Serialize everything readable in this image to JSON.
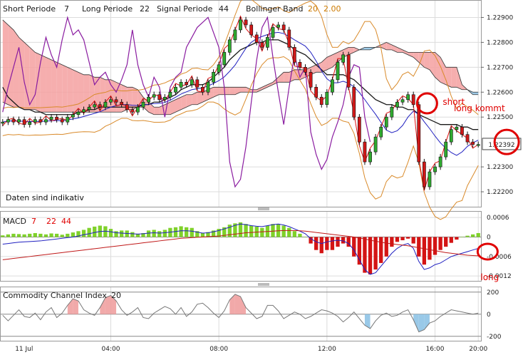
{
  "chart_data": [
    {
      "type": "candlestick",
      "panel": "price",
      "indicator_labels": {
        "short_label": "Short Periode",
        "short_value": "7",
        "long_label": "Long Periode",
        "long_value": "22",
        "signal_label": "Signal Periode",
        "signal_value": "44",
        "boll_label": "Bollinger Band",
        "boll_value1": "20",
        "boll_value2": "2.00"
      },
      "note": "Daten sind indikativ",
      "y_ticks": [
        "1.22900",
        "1.22800",
        "1.22700",
        "1.22600",
        "1.22500",
        "1.22300",
        "1.22200"
      ],
      "y_tick_values": [
        1.229,
        1.228,
        1.227,
        1.226,
        1.225,
        1.223,
        1.222
      ],
      "ylim": [
        1.2214,
        1.2297
      ],
      "current_price": "1.22392",
      "current_value": 1.22392,
      "annotations": {
        "short": "short",
        "long_kommt": "long kommt"
      },
      "closes": [
        1.2248,
        1.2249,
        1.2248,
        1.2249,
        1.2247,
        1.2248,
        1.2249,
        1.2248,
        1.2249,
        1.225,
        1.2249,
        1.2248,
        1.225,
        1.2251,
        1.2252,
        1.2253,
        1.2254,
        1.2255,
        1.2254,
        1.2256,
        1.2257,
        1.2256,
        1.2255,
        1.2253,
        1.2252,
        1.2254,
        1.2256,
        1.2258,
        1.2259,
        1.2257,
        1.2258,
        1.226,
        1.2262,
        1.2264,
        1.2263,
        1.2265,
        1.2262,
        1.226,
        1.2264,
        1.2268,
        1.2271,
        1.2276,
        1.2281,
        1.2285,
        1.2289,
        1.2287,
        1.2283,
        1.228,
        1.2278,
        1.2282,
        1.2286,
        1.2287,
        1.2285,
        1.2278,
        1.2272,
        1.227,
        1.2268,
        1.2262,
        1.2258,
        1.2255,
        1.226,
        1.2265,
        1.2272,
        1.2275,
        1.2262,
        1.225,
        1.224,
        1.2232,
        1.2236,
        1.2242,
        1.2246,
        1.225,
        1.2254,
        1.2256,
        1.2257,
        1.2259,
        1.2255,
        1.2232,
        1.2222,
        1.2228,
        1.223,
        1.2234,
        1.224,
        1.2245,
        1.2246,
        1.2243,
        1.224,
        1.2239,
        1.2239
      ],
      "ichimoku_upper": [
        1.2289,
        1.2287,
        1.2285,
        1.2282,
        1.228,
        1.2278,
        1.2276,
        1.2275,
        1.2274,
        1.2273,
        1.2272,
        1.2271,
        1.227,
        1.2269,
        1.2268,
        1.2267,
        1.2267,
        1.2266,
        1.2266,
        1.2265,
        1.2265,
        1.2264,
        1.2263,
        1.2262,
        1.2262,
        1.2261,
        1.2258,
        1.2256,
        1.2254,
        1.2254,
        1.2255,
        1.2256,
        1.2257,
        1.2258,
        1.2259,
        1.2259,
        1.226,
        1.226,
        1.2261,
        1.2262,
        1.2262,
        1.2262,
        1.2262,
        1.2262,
        1.2262,
        1.2262,
        1.2261,
        1.2261,
        1.2262,
        1.2263,
        1.2264,
        1.2266,
        1.2268,
        1.2268,
        1.2269,
        1.2269,
        1.2269,
        1.227,
        1.2271,
        1.2272,
        1.2274,
        1.2275,
        1.2276,
        1.2277,
        1.2278,
        1.2278,
        1.2277,
        1.2277,
        1.2277,
        1.2278,
        1.2279,
        1.228,
        1.2279,
        1.2278,
        1.2277,
        1.2276,
        1.2276,
        1.2276,
        1.2276,
        1.2276,
        1.2276,
        1.2274,
        1.227,
        1.227,
        1.227,
        1.2263,
        1.2261,
        1.2259,
        1.2259
      ],
      "ichimoku_lower": [
        1.2256,
        1.2255,
        1.2254,
        1.2254,
        1.2253,
        1.2253,
        1.2253,
        1.2252,
        1.2252,
        1.2252,
        1.2252,
        1.2252,
        1.2252,
        1.2252,
        1.2252,
        1.2252,
        1.2252,
        1.2252,
        1.2252,
        1.2252,
        1.2252,
        1.2252,
        1.2252,
        1.2253,
        1.2253,
        1.2254,
        1.2254,
        1.2252,
        1.2251,
        1.2251,
        1.2251,
        1.2251,
        1.2252,
        1.2253,
        1.2254,
        1.2255,
        1.2255,
        1.2256,
        1.2257,
        1.2258,
        1.2259,
        1.2259,
        1.2259,
        1.2259,
        1.226,
        1.226,
        1.226,
        1.226,
        1.2261,
        1.2262,
        1.2263,
        1.2264,
        1.2264,
        1.2264,
        1.2265,
        1.2265,
        1.2266,
        1.2267,
        1.2268,
        1.2268,
        1.2269,
        1.227,
        1.2272,
        1.2274,
        1.2275,
        1.2276,
        1.2277,
        1.2278,
        1.2278,
        1.2278,
        1.2278,
        1.2277,
        1.2277,
        1.2276,
        1.2276,
        1.2275,
        1.2274,
        1.2272,
        1.227,
        1.2269,
        1.2266,
        1.2264,
        1.2263,
        1.2262,
        1.2262,
        1.2261,
        1.2261,
        1.226,
        1.226
      ],
      "lagging_span": [
        1.2252,
        1.2262,
        1.227,
        1.2278,
        1.2264,
        1.2255,
        1.2259,
        1.2272,
        1.2282,
        1.2275,
        1.227,
        1.2281,
        1.229,
        1.2283,
        1.2285,
        1.2281,
        1.2272,
        1.2263,
        1.2266,
        1.2268,
        1.2263,
        1.226,
        1.2265,
        1.2271,
        1.2285,
        1.2271,
        1.2263,
        1.2258,
        1.2266,
        1.2262,
        1.225,
        1.2262,
        1.2266,
        1.2268,
        1.2278,
        1.2282,
        1.2286,
        1.2288,
        1.229,
        1.2284,
        1.2278,
        1.2262,
        1.2232,
        1.2222,
        1.2225,
        1.2238,
        1.2256,
        1.2273,
        1.2286,
        1.229,
        1.2274,
        1.226,
        1.2247,
        1.2262,
        1.2275,
        1.2266,
        1.227,
        1.2244,
        1.2235,
        1.2229,
        1.2233,
        1.2242,
        1.2248,
        1.2255,
        1.2266,
        1.2271,
        1.227,
        1.225,
        1.224
      ],
      "sma_fast": [
        1.2262,
        1.2258,
        1.2256,
        1.2254,
        1.2253,
        1.2253,
        1.2252,
        1.2252,
        1.2251,
        1.2251,
        1.2251,
        1.2251,
        1.2251,
        1.2251,
        1.2252,
        1.2252,
        1.2253,
        1.2253,
        1.2254,
        1.2254,
        1.2254,
        1.2254,
        1.2254,
        1.2254,
        1.2254,
        1.2254,
        1.2255,
        1.2255,
        1.2256,
        1.2256,
        1.2257,
        1.2258,
        1.2259,
        1.2261,
        1.2262,
        1.2263,
        1.2263,
        1.2263,
        1.2264,
        1.2266,
        1.2268,
        1.227,
        1.2273,
        1.2275,
        1.2277,
        1.2278,
        1.2279,
        1.228,
        1.228,
        1.2281,
        1.2281,
        1.2281,
        1.228,
        1.2279,
        1.2277,
        1.2276,
        1.2275,
        1.2273,
        1.2271,
        1.2269,
        1.2267,
        1.2267,
        1.2267,
        1.2267,
        1.2266,
        1.2265,
        1.2263,
        1.2261,
        1.2259,
        1.2257,
        1.2256,
        1.2255,
        1.2255,
        1.2254,
        1.2254,
        1.2253,
        1.2253,
        1.2251,
        1.225,
        1.2249,
        1.2248,
        1.2247,
        1.2247,
        1.2247,
        1.2247,
        1.2246,
        1.2246,
        1.2245,
        1.2245
      ]
    },
    {
      "type": "bar+line",
      "panel": "macd",
      "title": "MACD",
      "params": [
        "7",
        "22",
        "44"
      ],
      "y_ticks": [
        "0.0006",
        "0",
        "-0.0006",
        "-0.0012"
      ],
      "y_tick_values": [
        0.0006,
        0,
        -0.0006,
        -0.0012
      ],
      "ylim": [
        -0.00135,
        0.0008
      ],
      "annotation": "long",
      "histogram": [
        5e-05,
        8e-05,
        0.0001,
        9e-05,
        8e-05,
        0.0001,
        0.00012,
        0.0001,
        8e-05,
        0.00011,
        0.0001,
        7e-05,
        0.0001,
        0.00014,
        0.00018,
        0.00022,
        0.00028,
        0.00032,
        0.00035,
        0.00033,
        0.00025,
        0.00018,
        0.0002,
        0.0002,
        0.00015,
        0.0001,
        0.00012,
        0.0002,
        0.00022,
        0.00018,
        0.00022,
        0.00028,
        0.0003,
        0.00033,
        0.0003,
        0.00028,
        0.00018,
        0.00012,
        0.00015,
        0.0002,
        0.00025,
        0.0003,
        0.00038,
        0.00042,
        0.00045,
        0.0004,
        0.00035,
        0.00032,
        0.00028,
        0.00035,
        0.0004,
        0.0004,
        0.00035,
        0.00028,
        0.00018,
        0.0001,
        0.0,
        -0.0002,
        -0.0004,
        -0.0005,
        -0.0004,
        -0.0004,
        -0.0003,
        -0.0002,
        -0.0003,
        -0.0006,
        -0.00085,
        -0.0011,
        -0.00115,
        -0.001,
        -0.0008,
        -0.0006,
        -0.0003,
        -0.00015,
        -0.0001,
        -5e-05,
        -0.0002,
        -0.0006,
        -0.00085,
        -0.0007,
        -0.00055,
        -0.0004,
        -0.0003,
        -0.00018,
        -8e-05,
        0.0,
        4e-05,
        8e-05,
        0.00012
      ],
      "macd_line": [
        -0.00022,
        -0.0002,
        -0.00018,
        -0.00016,
        -0.00015,
        -0.00014,
        -0.00013,
        -0.00012,
        -0.0001,
        -8e-05,
        -6e-05,
        -4e-05,
        -2e-05,
        0.0,
        3e-05,
        7e-05,
        0.0001,
        0.00014,
        0.00017,
        0.00018,
        0.00016,
        0.00013,
        0.00012,
        0.00011,
        0.0001,
        9e-05,
        0.0001,
        0.00012,
        0.00013,
        0.00012,
        0.00013,
        0.00015,
        0.00017,
        0.00019,
        0.00019,
        0.00018,
        0.00015,
        0.00012,
        0.00013,
        0.00016,
        0.0002,
        0.00025,
        0.0003,
        0.00036,
        0.0004,
        0.00038,
        0.00035,
        0.00033,
        0.00032,
        0.00035,
        0.00038,
        0.0004,
        0.00037,
        0.00032,
        0.00025,
        0.00018,
        0.0001,
        -5e-05,
        -0.00015,
        -0.0002,
        -0.00015,
        -0.00012,
        -0.0001,
        -0.00012,
        -0.0002,
        -0.0004,
        -0.0007,
        -0.001,
        -0.00115,
        -0.0011,
        -0.0009,
        -0.0007,
        -0.0005,
        -0.00035,
        -0.00025,
        -0.0002,
        -0.00035,
        -0.00075,
        -0.001,
        -0.00095,
        -0.00085,
        -0.0008,
        -0.0007,
        -0.0006,
        -0.00055,
        -0.0005,
        -0.00045,
        -0.0004,
        -0.00035
      ],
      "signal_line": [
        -0.0007,
        -0.00068,
        -0.00066,
        -0.00064,
        -0.00062,
        -0.0006,
        -0.00058,
        -0.00056,
        -0.00054,
        -0.00052,
        -0.0005,
        -0.00048,
        -0.00046,
        -0.00044,
        -0.00042,
        -0.0004,
        -0.00038,
        -0.00036,
        -0.00034,
        -0.00032,
        -0.0003,
        -0.00028,
        -0.00026,
        -0.00024,
        -0.00022,
        -0.0002,
        -0.00018,
        -0.00016,
        -0.00014,
        -0.00012,
        -0.0001,
        -8e-05,
        -6e-05,
        -4e-05,
        -3e-05,
        -2e-05,
        -1e-05,
        0.0,
        1e-05,
        2e-05,
        3e-05,
        5e-05,
        7e-05,
        9e-05,
        0.00011,
        0.00013,
        0.00014,
        0.00015,
        0.00016,
        0.00017,
        0.00018,
        0.00019,
        0.0002,
        0.0002,
        0.0002,
        0.00019,
        0.00018,
        0.00016,
        0.00014,
        0.00012,
        0.0001,
        8e-05,
        6e-05,
        4e-05,
        2e-05,
        0.0,
        -3e-05,
        -6e-05,
        -0.0001,
        -0.00013,
        -0.00016,
        -0.00019,
        -0.00021,
        -0.00023,
        -0.00025,
        -0.00027,
        -0.0003,
        -0.00033,
        -0.00036,
        -0.00039,
        -0.00042,
        -0.00045,
        -0.00048,
        -0.0005,
        -0.00052,
        -0.00054,
        -0.00056,
        -0.00057,
        -0.00058
      ]
    },
    {
      "type": "area",
      "panel": "cci",
      "title": "Commodity Channel Index",
      "param": "20",
      "y_ticks": [
        "200",
        "0",
        "-200"
      ],
      "y_tick_values": [
        200,
        0,
        -200
      ],
      "ylim": [
        -240,
        250
      ],
      "x_ticks": [
        "11 Jul",
        "04:00",
        "08:00",
        "12:00",
        "16:00",
        "20:00"
      ],
      "values": [
        -10,
        -60,
        -10,
        40,
        -20,
        -30,
        10,
        -50,
        20,
        60,
        -30,
        10,
        80,
        140,
        120,
        40,
        10,
        -10,
        60,
        150,
        170,
        120,
        40,
        -10,
        20,
        60,
        -30,
        -40,
        10,
        40,
        70,
        50,
        0,
        60,
        -20,
        20,
        90,
        100,
        60,
        10,
        -30,
        30,
        130,
        180,
        160,
        60,
        10,
        -40,
        -20,
        80,
        80,
        30,
        -40,
        -10,
        20,
        0,
        -40,
        -20,
        10,
        40,
        30,
        10,
        -20,
        -70,
        -30,
        20,
        -40,
        -100,
        -130,
        -60,
        -10,
        10,
        -20,
        -10,
        20,
        40,
        -50,
        -160,
        -140,
        -80,
        -60,
        -20,
        10,
        40,
        30,
        20,
        10,
        0,
        10
      ]
    }
  ]
}
